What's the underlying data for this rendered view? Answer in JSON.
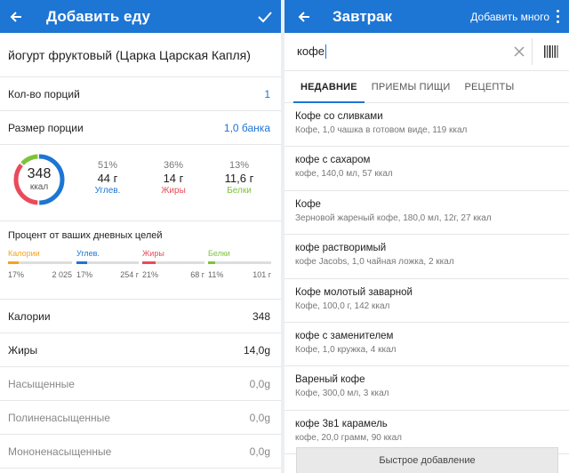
{
  "left": {
    "title": "Добавить еду",
    "food_name": "йогурт фруктовый (Царка Царская Капля)",
    "servings_label": "Кол-во порций",
    "servings_value": "1",
    "serving_size_label": "Размер порции",
    "serving_size_value": "1,0 банка",
    "ring": {
      "calories": "348",
      "unit": "ккал"
    },
    "macros": [
      {
        "pct": "51%",
        "grams": "44 г",
        "label": "Углев.",
        "color": "#1d75d4"
      },
      {
        "pct": "36%",
        "grams": "14 г",
        "label": "Жиры",
        "color": "#e94b5a"
      },
      {
        "pct": "13%",
        "grams": "11,6 г",
        "label": "Белки",
        "color": "#7cc33a"
      }
    ],
    "goals_title": "Процент от ваших дневных целей",
    "goals": [
      {
        "name": "Калории",
        "pct": "17%",
        "total": "2 025",
        "fill": 0.17,
        "color": "#f4a321"
      },
      {
        "name": "Углев.",
        "pct": "17%",
        "total": "254 г",
        "fill": 0.17,
        "color": "#1d75d4"
      },
      {
        "name": "Жиры",
        "pct": "21%",
        "total": "68 г",
        "fill": 0.21,
        "color": "#e94b5a"
      },
      {
        "name": "Белки",
        "pct": "11%",
        "total": "101 г",
        "fill": 0.11,
        "color": "#7cc33a"
      }
    ],
    "nutrients": [
      {
        "label": "Калории",
        "value": "348"
      },
      {
        "label": "Жиры",
        "value": "14,0g"
      },
      {
        "label": "Насыщенные",
        "value": "0,0g"
      },
      {
        "label": "Полиненасыщенные",
        "value": "0,0g"
      },
      {
        "label": "Мононенасыщенные",
        "value": "0,0g"
      }
    ]
  },
  "right": {
    "title": "Завтрак",
    "add_many": "Добавить много",
    "search_value": "кофе",
    "tabs": [
      "НЕДАВНИЕ",
      "ПРИЕМЫ ПИЩИ",
      "РЕЦЕПТЫ"
    ],
    "items": [
      {
        "name": "Кофе со сливками",
        "desc": "Кофе, 1,0 чашка в готовом виде, 119 ккал"
      },
      {
        "name": "кофе с сахаром",
        "desc": "кофе, 140,0 мл, 57 ккал"
      },
      {
        "name": "Кофе",
        "desc": "Зерновой жареный кофе, 180,0 мл, 12г, 27 ккал"
      },
      {
        "name": "кофе растворимый",
        "desc": "кофе Jacobs, 1,0 чайная ложка, 2 ккал"
      },
      {
        "name": "Кофе молотый заварной",
        "desc": "Кофе, 100,0 г, 142 ккал"
      },
      {
        "name": "кофе с заменителем",
        "desc": "Кофе, 1,0 кружка, 4 ккал"
      },
      {
        "name": "Вареный кофе",
        "desc": "Кофе, 300,0 мл, 3 ккал"
      },
      {
        "name": "кофе 3в1 карамель",
        "desc": "кофе, 20,0 грамм, 90 ккал"
      }
    ],
    "quick_add": "Быстрое добавление"
  },
  "colors": {
    "appbar": "#1d75d4",
    "carbs": "#1d75d4",
    "fat": "#e94b5a",
    "protein": "#7cc33a",
    "calories": "#f4a321"
  },
  "icons": {
    "back": "arrow-left-icon",
    "confirm": "check-icon",
    "menu": "more-vert-icon",
    "clear": "close-icon",
    "barcode": "barcode-icon"
  }
}
